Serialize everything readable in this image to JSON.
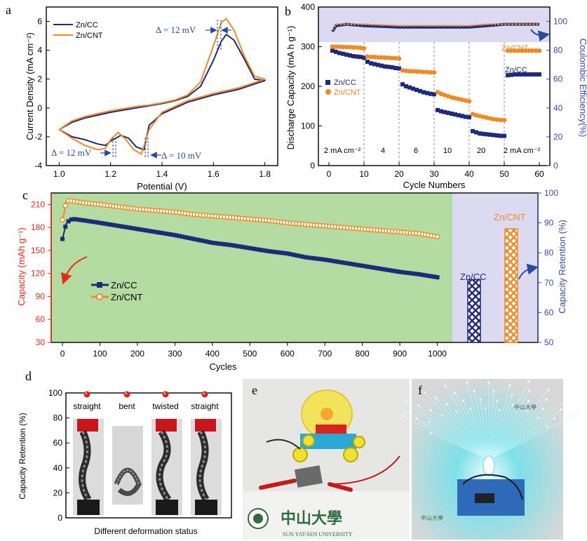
{
  "colors": {
    "cc": "#1f2a7a",
    "cnt": "#f08a24",
    "red_axis": "#e8291c",
    "blue_axis": "#3a4bb0",
    "green_bg": "#b4dca0",
    "lav_bg": "#dcdaf0",
    "annot": "#2a4aa0"
  },
  "chart_data": [
    {
      "panel": "a",
      "type": "line",
      "xlabel": "Potential (V)",
      "ylabel": "Current Density (mA cm⁻²)",
      "xlim": [
        0.95,
        1.85
      ],
      "ylim": [
        -4,
        7
      ],
      "xticks": [
        1.0,
        1.2,
        1.4,
        1.6,
        1.8
      ],
      "xtick_labels": [
        "1.0",
        "1.2",
        "1.4",
        "1.6",
        "1.8"
      ],
      "yticks": [
        -4,
        -2,
        0,
        2,
        4,
        6
      ],
      "ytick_labels": [
        "-4",
        "-2",
        "0",
        "2",
        "4",
        "6"
      ],
      "legend": [
        "Zn/CC",
        "Zn/CNT"
      ],
      "annotations": [
        "Δ = 12 mV",
        "Δ = 12 mV",
        "Δ = 10 mV"
      ],
      "series": [
        {
          "name": "Zn/CC",
          "x": [
            1.0,
            1.05,
            1.1,
            1.15,
            1.2,
            1.25,
            1.3,
            1.35,
            1.4,
            1.45,
            1.5,
            1.55,
            1.6,
            1.63,
            1.65,
            1.68,
            1.72,
            1.76,
            1.8,
            1.75,
            1.7,
            1.6,
            1.5,
            1.4,
            1.35,
            1.33,
            1.3,
            1.27,
            1.24,
            1.2,
            1.18,
            1.15,
            1.1,
            1.05,
            1.0
          ],
          "y": [
            -1.5,
            -1.0,
            -0.7,
            -0.5,
            -0.3,
            -0.15,
            0.0,
            0.15,
            0.3,
            0.5,
            0.8,
            1.5,
            3.3,
            4.6,
            5.1,
            4.7,
            3.4,
            2.0,
            1.9,
            1.6,
            1.3,
            0.9,
            0.4,
            -0.4,
            -1.2,
            -2.9,
            -2.7,
            -2.1,
            -1.9,
            -2.3,
            -2.6,
            -2.5,
            -2.2,
            -2.0,
            -1.5
          ]
        },
        {
          "name": "Zn/CNT",
          "x": [
            1.0,
            1.05,
            1.1,
            1.15,
            1.2,
            1.25,
            1.3,
            1.35,
            1.4,
            1.45,
            1.5,
            1.55,
            1.6,
            1.63,
            1.65,
            1.68,
            1.72,
            1.76,
            1.8,
            1.75,
            1.7,
            1.6,
            1.5,
            1.4,
            1.35,
            1.32,
            1.29,
            1.26,
            1.23,
            1.2,
            1.18,
            1.15,
            1.1,
            1.05,
            1.0
          ],
          "y": [
            -1.5,
            -0.9,
            -0.6,
            -0.4,
            -0.2,
            -0.05,
            0.1,
            0.2,
            0.35,
            0.55,
            0.9,
            1.8,
            4.3,
            5.9,
            6.2,
            5.4,
            3.6,
            2.2,
            2.0,
            1.7,
            1.4,
            1.0,
            0.5,
            -0.3,
            -1.5,
            -3.2,
            -2.9,
            -2.2,
            -1.7,
            -2.2,
            -2.8,
            -2.9,
            -2.6,
            -2.1,
            -1.5
          ]
        }
      ]
    },
    {
      "panel": "b",
      "type": "scatter",
      "xlabel": "Cycle Numbers",
      "ylabel": "Discharge Capacity (mA h g⁻¹)",
      "ylabel_right": "Coulombic Efficiency(%)",
      "xlim": [
        -3,
        63
      ],
      "ylim": [
        0,
        400
      ],
      "ylim_right": [
        0,
        110
      ],
      "xticks": [
        0,
        10,
        20,
        30,
        40,
        50,
        60
      ],
      "xtick_labels": [
        "0",
        "10",
        "20",
        "30",
        "40",
        "50",
        "60"
      ],
      "yticks": [
        0,
        100,
        200,
        300,
        400
      ],
      "ytick_labels": [
        "0",
        "100",
        "200",
        "300",
        "400"
      ],
      "yticks_right": [
        0,
        20,
        40,
        60,
        80,
        100
      ],
      "ytick_labels_right": [
        "0",
        "20",
        "40",
        "60",
        "80",
        "100"
      ],
      "rate_labels": [
        "2 mA cm⁻²",
        "4",
        "6",
        "10",
        "20",
        "2 mA cm⁻²"
      ],
      "legend": [
        "Zn/CC",
        "Zn/CNT"
      ],
      "series": [
        {
          "name": "Zn/CC capacity",
          "x": [
            1,
            2,
            3,
            4,
            5,
            6,
            7,
            8,
            9,
            10,
            11,
            12,
            13,
            14,
            15,
            16,
            17,
            18,
            19,
            20,
            21,
            22,
            23,
            24,
            25,
            26,
            27,
            28,
            29,
            30,
            31,
            32,
            33,
            34,
            35,
            36,
            37,
            38,
            39,
            40,
            41,
            42,
            43,
            44,
            45,
            46,
            47,
            48,
            49,
            50,
            51,
            52,
            53,
            54,
            55,
            56,
            57,
            58,
            59,
            60
          ],
          "y": [
            290,
            287,
            284,
            282,
            280,
            278,
            276,
            275,
            274,
            272,
            262,
            258,
            256,
            254,
            252,
            250,
            249,
            248,
            246,
            245,
            205,
            200,
            197,
            194,
            191,
            188,
            185,
            183,
            181,
            180,
            140,
            137,
            135,
            133,
            131,
            129,
            127,
            125,
            123,
            122,
            87,
            84,
            81,
            80,
            79,
            78,
            77,
            76,
            75,
            75,
            228,
            229,
            230,
            230,
            230,
            230,
            230,
            230,
            230,
            230
          ]
        },
        {
          "name": "Zn/CNT capacity",
          "x": [
            1,
            2,
            3,
            4,
            5,
            6,
            7,
            8,
            9,
            10,
            11,
            12,
            13,
            14,
            15,
            16,
            17,
            18,
            19,
            20,
            21,
            22,
            23,
            24,
            25,
            26,
            27,
            28,
            29,
            30,
            31,
            32,
            33,
            34,
            35,
            36,
            37,
            38,
            39,
            40,
            41,
            42,
            43,
            44,
            45,
            46,
            47,
            48,
            49,
            50,
            51,
            52,
            53,
            54,
            55,
            56,
            57,
            58,
            59,
            60
          ],
          "y": [
            300,
            300,
            300,
            299,
            299,
            299,
            298,
            298,
            297,
            296,
            275,
            274,
            274,
            273,
            273,
            272,
            272,
            271,
            271,
            270,
            240,
            239,
            238,
            238,
            237,
            237,
            236,
            236,
            235,
            235,
            185,
            181,
            178,
            175,
            172,
            170,
            168,
            166,
            164,
            162,
            130,
            127,
            125,
            123,
            121,
            119,
            117,
            116,
            115,
            115,
            290,
            290,
            290,
            290,
            290,
            290,
            290,
            290,
            290,
            290
          ]
        },
        {
          "name": "Zn/CC CE",
          "x": [
            1,
            2,
            5,
            10,
            20,
            30,
            40,
            45,
            50,
            55,
            60
          ],
          "y": [
            93,
            97,
            98,
            97,
            96,
            96,
            96,
            97,
            98,
            98,
            98
          ]
        },
        {
          "name": "Zn/CNT CE",
          "x": [
            1,
            2,
            5,
            10,
            20,
            30,
            40,
            45,
            50,
            55,
            60
          ],
          "y": [
            94,
            98,
            98,
            98,
            97,
            97,
            97,
            98,
            98,
            98,
            98
          ]
        }
      ]
    },
    {
      "panel": "c",
      "type": "line",
      "xlabel": "Cycles",
      "ylabel": "Capacity (mAh g⁻¹)",
      "ylabel_right": "Capacity Retention (%)",
      "xlim": [
        -30,
        1040
      ],
      "ylim": [
        30,
        225
      ],
      "ylim_right": [
        50,
        100
      ],
      "xticks": [
        0,
        100,
        200,
        300,
        400,
        500,
        600,
        700,
        800,
        900,
        1000
      ],
      "xtick_labels": [
        "0",
        "100",
        "200",
        "300",
        "400",
        "500",
        "600",
        "700",
        "800",
        "900",
        "1000"
      ],
      "yticks": [
        30,
        60,
        90,
        120,
        150,
        180,
        210
      ],
      "ytick_labels": [
        "30",
        "60",
        "90",
        "120",
        "150",
        "180",
        "210"
      ],
      "yticks_right": [
        50,
        60,
        70,
        80,
        90,
        100
      ],
      "ytick_labels_right": [
        "50",
        "60",
        "70",
        "80",
        "90",
        "100"
      ],
      "legend": [
        "Zn/CC",
        "Zn/CNT"
      ],
      "series": [
        {
          "name": "Zn/CC",
          "x": [
            0,
            5,
            10,
            20,
            30,
            60,
            100,
            150,
            200,
            250,
            300,
            350,
            400,
            450,
            500,
            550,
            600,
            650,
            700,
            750,
            800,
            850,
            900,
            950,
            1000
          ],
          "y": [
            165,
            175,
            185,
            190,
            191,
            189,
            186,
            182,
            178,
            174,
            170,
            165,
            160,
            157,
            153,
            149,
            146,
            141,
            138,
            134,
            130,
            126,
            122,
            119,
            115
          ]
        },
        {
          "name": "Zn/CNT",
          "x": [
            0,
            5,
            10,
            20,
            30,
            60,
            100,
            150,
            200,
            250,
            300,
            350,
            400,
            450,
            500,
            550,
            600,
            650,
            700,
            750,
            800,
            850,
            900,
            950,
            1000
          ],
          "y": [
            190,
            200,
            214,
            215,
            214,
            212,
            210,
            207,
            204,
            202,
            200,
            197,
            195,
            193,
            191,
            189,
            186,
            184,
            182,
            180,
            178,
            176,
            174,
            172,
            168
          ]
        }
      ],
      "bars": {
        "categories": [
          "Zn/CC",
          "Zn/CNT"
        ],
        "values": [
          71,
          88
        ],
        "unit": "%"
      }
    },
    {
      "panel": "d",
      "type": "bar",
      "xlabel": "Different deformation status",
      "ylabel": "Capacity Retention (%)",
      "ylim": [
        0,
        100
      ],
      "yticks": [
        0,
        20,
        40,
        60,
        80,
        100
      ],
      "ytick_labels": [
        "0",
        "20",
        "40",
        "60",
        "80",
        "100"
      ],
      "categories": [
        "straight",
        "bent",
        "twisted",
        "straight"
      ],
      "values": [
        100,
        100,
        100,
        100
      ]
    }
  ],
  "panels": {
    "a": "a",
    "b": "b",
    "c": "c",
    "d": "d",
    "e": "e",
    "f": "f"
  },
  "photo_e": {
    "logo_cn": "中山大學",
    "logo_en": "SUN  YAT-SEN  UNIVERSITY"
  },
  "photo_f": {
    "logo_cn": "中山大學"
  }
}
